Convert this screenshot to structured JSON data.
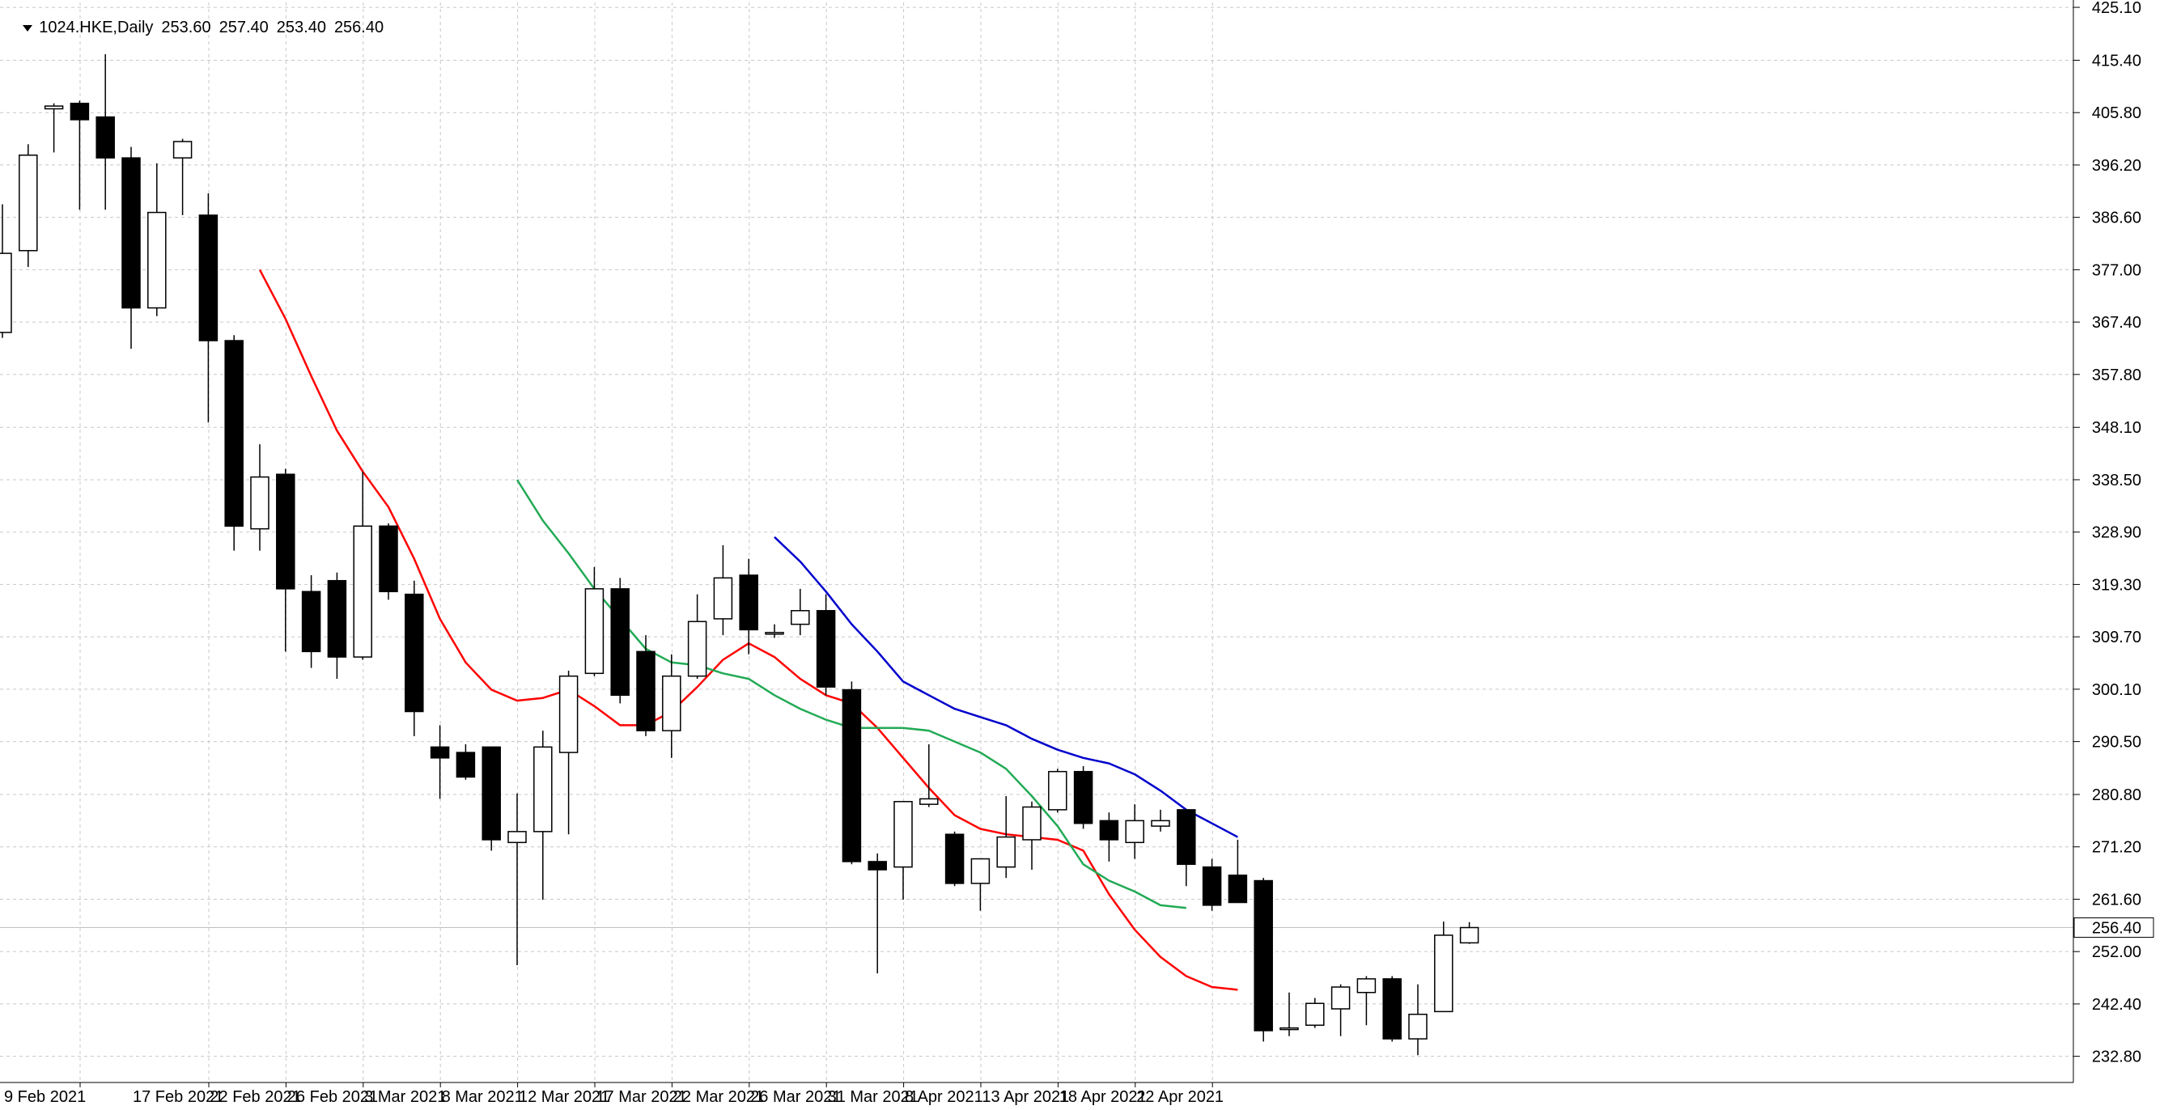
{
  "header": {
    "symbol_label": "1024.HKE,Daily",
    "open": "253.60",
    "high": "257.40",
    "low": "253.40",
    "close": "256.40"
  },
  "price_axis": {
    "labels": [
      "425.10",
      "415.40",
      "405.80",
      "396.20",
      "386.60",
      "377.00",
      "367.40",
      "357.80",
      "348.10",
      "338.50",
      "328.90",
      "319.30",
      "309.70",
      "300.10",
      "290.50",
      "280.80",
      "271.20",
      "261.60",
      "252.00",
      "242.40",
      "232.80"
    ],
    "current_price_label": "256.40"
  },
  "date_axis": {
    "labels": [
      "9 Feb 2021",
      "17 Feb 2021",
      "22 Feb 2021",
      "26 Feb 2021",
      "3 Mar 2021",
      "8 Mar 2021",
      "12 Mar 2021",
      "17 Mar 2021",
      "22 Mar 2021",
      "26 Mar 2021",
      "31 Mar 2021",
      "8 Apr 2021",
      "13 Apr 2021",
      "18 Apr 2021",
      "22 Apr 2021"
    ]
  },
  "colors": {
    "background": "#ffffff",
    "grid": "#c8c8c8",
    "bull_body": "#ffffff",
    "bear_body": "#000000",
    "candle_outline": "#000000",
    "ma_fast": "#ff0000",
    "ma_mid": "#22aa55",
    "ma_slow": "#0000cc",
    "current_price_line": "#c0c0c0"
  },
  "chart_data": {
    "type": "candlestick",
    "title": "1024.HKE,Daily",
    "ylim": [
      228.0,
      426.0
    ],
    "grid": true,
    "price_scale_side": "right",
    "candles": [
      {
        "o": 365.5,
        "h": 389.0,
        "l": 364.5,
        "c": 380.0
      },
      {
        "o": 380.5,
        "h": 400.0,
        "l": 377.5,
        "c": 398.0
      },
      {
        "o": 406.5,
        "h": 407.5,
        "l": 398.5,
        "c": 407.0
      },
      {
        "o": 407.5,
        "h": 408.0,
        "l": 388.0,
        "c": 404.5
      },
      {
        "o": 405.0,
        "h": 416.5,
        "l": 388.0,
        "c": 397.5
      },
      {
        "o": 397.5,
        "h": 399.5,
        "l": 362.5,
        "c": 370.0
      },
      {
        "o": 370.0,
        "h": 396.5,
        "l": 368.5,
        "c": 387.5
      },
      {
        "o": 397.5,
        "h": 401.0,
        "l": 387.0,
        "c": 400.5
      },
      {
        "o": 387.0,
        "h": 391.0,
        "l": 349.0,
        "c": 364.0
      },
      {
        "o": 364.0,
        "h": 365.0,
        "l": 325.5,
        "c": 330.0
      },
      {
        "o": 329.5,
        "h": 345.0,
        "l": 325.5,
        "c": 339.0
      },
      {
        "o": 339.5,
        "h": 340.5,
        "l": 307.0,
        "c": 318.5
      },
      {
        "o": 318.0,
        "h": 321.0,
        "l": 304.0,
        "c": 307.0
      },
      {
        "o": 320.0,
        "h": 321.5,
        "l": 302.0,
        "c": 306.0
      },
      {
        "o": 306.0,
        "h": 340.0,
        "l": 305.5,
        "c": 330.0
      },
      {
        "o": 330.0,
        "h": 330.5,
        "l": 316.5,
        "c": 318.0
      },
      {
        "o": 317.5,
        "h": 320.0,
        "l": 291.5,
        "c": 296.0
      },
      {
        "o": 289.5,
        "h": 293.5,
        "l": 280.0,
        "c": 287.5
      },
      {
        "o": 288.5,
        "h": 290.0,
        "l": 283.5,
        "c": 284.0
      },
      {
        "o": 289.5,
        "h": 289.5,
        "l": 270.5,
        "c": 272.5
      },
      {
        "o": 272.0,
        "h": 281.0,
        "l": 249.5,
        "c": 274.0
      },
      {
        "o": 274.0,
        "h": 292.5,
        "l": 261.5,
        "c": 289.5
      },
      {
        "o": 288.5,
        "h": 303.5,
        "l": 273.5,
        "c": 302.5
      },
      {
        "o": 303.0,
        "h": 322.5,
        "l": 302.5,
        "c": 318.5
      },
      {
        "o": 318.5,
        "h": 320.5,
        "l": 297.5,
        "c": 299.0
      },
      {
        "o": 307.0,
        "h": 310.0,
        "l": 291.5,
        "c": 292.5
      },
      {
        "o": 292.5,
        "h": 306.5,
        "l": 287.5,
        "c": 302.5
      },
      {
        "o": 302.5,
        "h": 317.5,
        "l": 302.0,
        "c": 312.5
      },
      {
        "o": 313.0,
        "h": 326.5,
        "l": 310.0,
        "c": 320.5
      },
      {
        "o": 321.0,
        "h": 324.0,
        "l": 306.5,
        "c": 311.0
      },
      {
        "o": 310.5,
        "h": 312.0,
        "l": 309.5,
        "c": 310.5
      },
      {
        "o": 312.0,
        "h": 318.5,
        "l": 310.0,
        "c": 314.5
      },
      {
        "o": 314.5,
        "h": 317.5,
        "l": 299.0,
        "c": 300.5
      },
      {
        "o": 300.0,
        "h": 301.5,
        "l": 268.0,
        "c": 268.5
      },
      {
        "o": 268.5,
        "h": 270.0,
        "l": 248.0,
        "c": 267.0
      },
      {
        "o": 267.5,
        "h": 279.5,
        "l": 261.5,
        "c": 279.5
      },
      {
        "o": 279.0,
        "h": 290.0,
        "l": 278.5,
        "c": 280.0
      },
      {
        "o": 273.5,
        "h": 274.0,
        "l": 264.0,
        "c": 264.5
      },
      {
        "o": 264.5,
        "h": 269.0,
        "l": 259.5,
        "c": 269.0
      },
      {
        "o": 267.5,
        "h": 280.5,
        "l": 265.5,
        "c": 273.0
      },
      {
        "o": 272.5,
        "h": 279.5,
        "l": 267.0,
        "c": 278.5
      },
      {
        "o": 278.0,
        "h": 285.5,
        "l": 277.5,
        "c": 285.0
      },
      {
        "o": 285.0,
        "h": 286.0,
        "l": 274.5,
        "c": 275.5
      },
      {
        "o": 276.0,
        "h": 277.5,
        "l": 268.5,
        "c": 272.5
      },
      {
        "o": 272.0,
        "h": 279.0,
        "l": 269.0,
        "c": 276.0
      },
      {
        "o": 275.0,
        "h": 278.0,
        "l": 274.0,
        "c": 276.0
      },
      {
        "o": 278.0,
        "h": 278.0,
        "l": 264.0,
        "c": 268.0
      },
      {
        "o": 267.5,
        "h": 269.0,
        "l": 259.5,
        "c": 260.5
      },
      {
        "o": 266.0,
        "h": 272.5,
        "l": 261.5,
        "c": 261.0
      },
      {
        "o": 265.0,
        "h": 265.5,
        "l": 235.5,
        "c": 237.5
      },
      {
        "o": 238.0,
        "h": 244.5,
        "l": 236.5,
        "c": 238.0
      },
      {
        "o": 238.5,
        "h": 243.5,
        "l": 238.0,
        "c": 242.5
      },
      {
        "o": 241.5,
        "h": 246.0,
        "l": 236.5,
        "c": 245.5
      },
      {
        "o": 244.5,
        "h": 247.5,
        "l": 238.5,
        "c": 247.0
      },
      {
        "o": 247.0,
        "h": 247.5,
        "l": 235.5,
        "c": 236.0
      },
      {
        "o": 236.0,
        "h": 246.0,
        "l": 233.0,
        "c": 240.5
      },
      {
        "o": 241.0,
        "h": 257.5,
        "l": 241.0,
        "c": 255.0
      },
      {
        "o": 253.6,
        "h": 257.4,
        "l": 253.4,
        "c": 256.4
      }
    ],
    "series": [
      {
        "role": "ma_fast",
        "start_index": 10,
        "values": [
          377.0,
          368.0,
          357.5,
          347.5,
          340.0,
          333.5,
          324.0,
          313.0,
          305.0,
          300.0,
          298.0,
          298.5,
          300.0,
          297.0,
          293.5,
          293.5,
          296.0,
          300.5,
          305.5,
          308.5,
          306.0,
          302.0,
          299.0,
          297.5,
          293.0,
          287.5,
          282.0,
          277.0,
          274.5,
          273.5,
          273.0,
          272.5,
          270.5,
          262.5,
          256.0,
          251.0,
          247.5,
          245.5,
          245.0
        ]
      },
      {
        "role": "ma_mid",
        "start_index": 20,
        "values": [
          338.5,
          331.0,
          325.0,
          318.5,
          313.0,
          307.5,
          305.0,
          304.5,
          303.0,
          302.0,
          299.0,
          296.5,
          294.5,
          293.0,
          293.0,
          293.0,
          292.5,
          290.5,
          288.5,
          285.5,
          280.5,
          275.0,
          268.0,
          265.0,
          263.0,
          260.5,
          260.0
        ]
      },
      {
        "role": "ma_slow",
        "start_index": 30,
        "values": [
          328.0,
          323.5,
          318.0,
          312.0,
          307.0,
          301.5,
          299.0,
          296.5,
          295.0,
          293.5,
          291.0,
          289.0,
          287.5,
          286.5,
          284.5,
          281.5,
          278.0,
          275.5,
          273.0
        ]
      }
    ]
  }
}
